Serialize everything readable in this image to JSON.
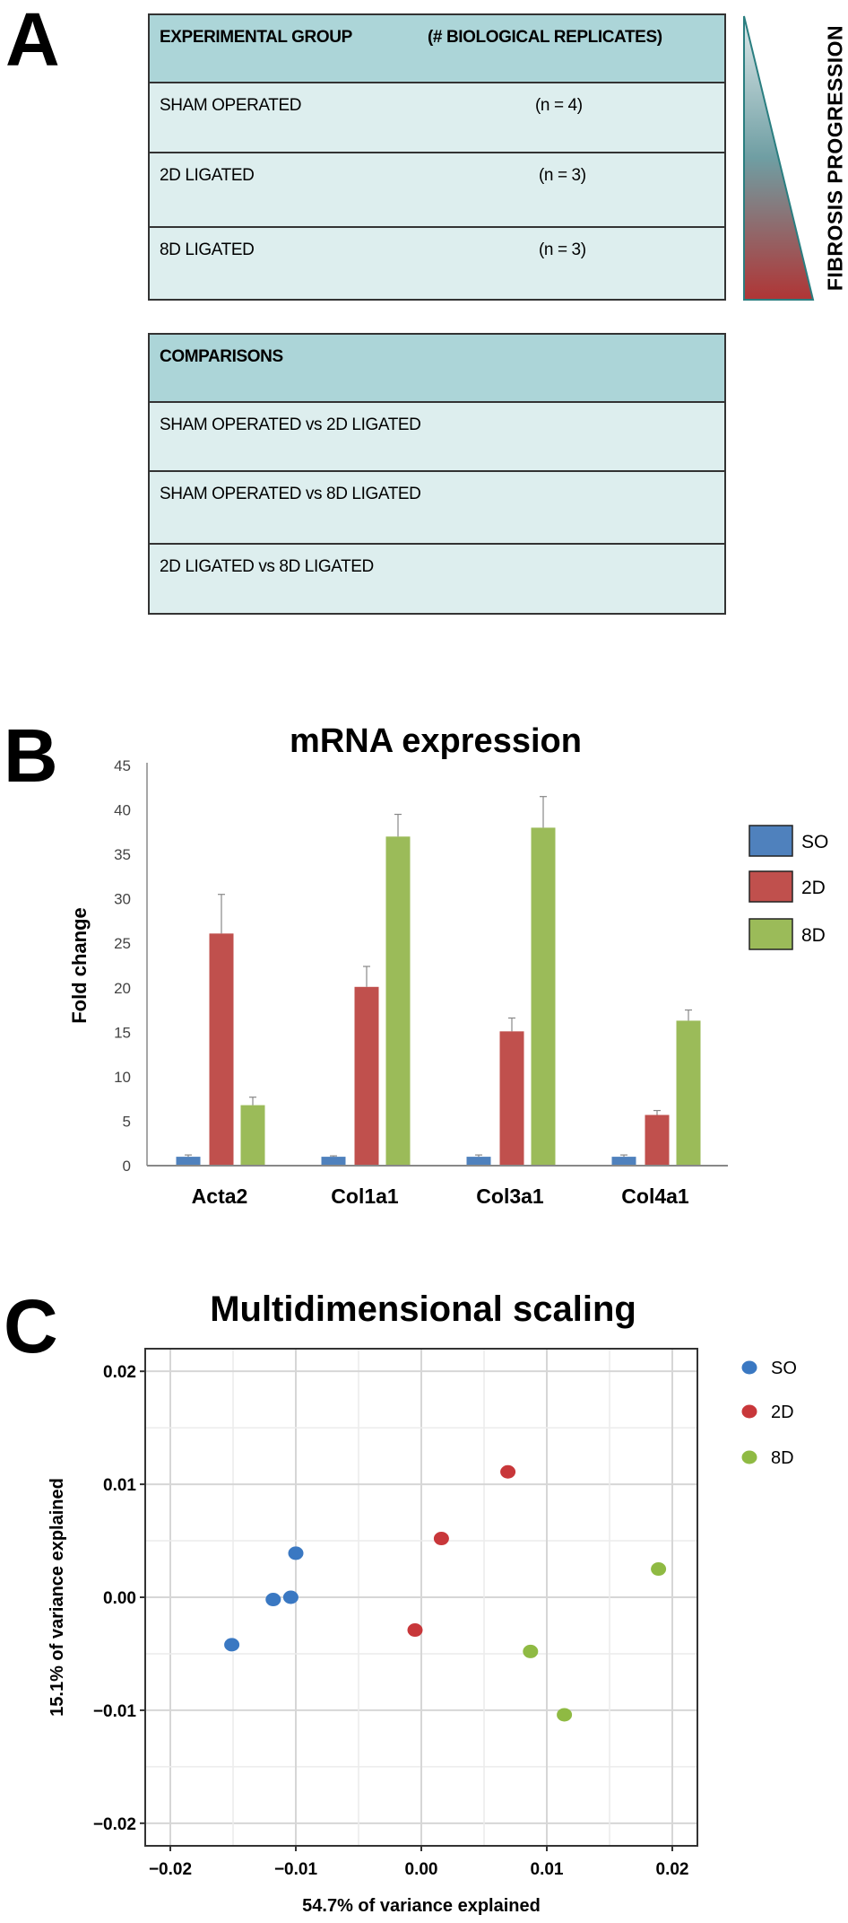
{
  "panels": {
    "a": "A",
    "b": "B",
    "c": "C"
  },
  "groups_table": {
    "header": [
      "EXPERIMENTAL GROUP",
      "(# BIOLOGICAL REPLICATES)"
    ],
    "rows": [
      [
        "SHAM OPERATED",
        "(n = 4)"
      ],
      [
        "2D LIGATED",
        "(n = 3)"
      ],
      [
        "8D LIGATED",
        "(n = 3)"
      ]
    ]
  },
  "comparisons_table": {
    "header": "COMPARISONS",
    "rows": [
      "SHAM OPERATED vs 2D LIGATED",
      "SHAM OPERATED vs 8D LIGATED",
      "2D LIGATED vs 8D LIGATED"
    ]
  },
  "fibrosis_indicator": {
    "label": "FIBROSIS PROGRESSION",
    "colors": [
      "#dde9ea",
      "#6f9ea3",
      "#b03535"
    ],
    "stroke": "#2a7e80"
  },
  "colors": {
    "table_header": "#acd5d8",
    "table_row": "#ddeeee"
  },
  "chart_data": [
    {
      "type": "bar",
      "title": "mRNA expression",
      "xlabel": "",
      "ylabel": "Fold change",
      "ylim": [
        0,
        45
      ],
      "yticks": [
        0,
        5,
        10,
        15,
        20,
        25,
        30,
        35,
        40,
        45
      ],
      "categories": [
        "Acta2",
        "Col1a1",
        "Col3a1",
        "Col4a1"
      ],
      "series": [
        {
          "name": "SO",
          "color": "#4f81bd",
          "values": [
            1.0,
            1.0,
            1.0,
            1.0
          ],
          "errors": [
            0.2,
            0.1,
            0.2,
            0.2
          ]
        },
        {
          "name": "2D",
          "color": "#c0504d",
          "values": [
            26.1,
            20.1,
            15.1,
            5.7
          ],
          "errors": [
            4.4,
            2.3,
            1.5,
            0.5
          ]
        },
        {
          "name": "8D",
          "color": "#9bbb59",
          "values": [
            6.8,
            37.0,
            38.0,
            16.3
          ],
          "errors": [
            0.9,
            2.5,
            3.5,
            1.2
          ]
        }
      ],
      "legend": "right",
      "grid": false
    },
    {
      "type": "scatter",
      "title": "Multidimensional scaling",
      "xlabel": "54.7% of variance explained",
      "ylabel": "15.1% of variance explained",
      "xlim": [
        -0.022,
        0.022
      ],
      "ylim": [
        -0.022,
        0.022
      ],
      "xticks": [
        "-0.02",
        "-0.01",
        "0.00",
        "0.01",
        "0.02"
      ],
      "yticks": [
        "-0.02",
        "-0.01",
        "0.00",
        "0.01",
        "0.02"
      ],
      "grid": true,
      "legend": "top-right",
      "series": [
        {
          "name": "SO",
          "color": "#3a78c2",
          "points": [
            [
              -0.0151,
              -0.0042
            ],
            [
              -0.0118,
              -0.0002
            ],
            [
              -0.0104,
              0.0
            ],
            [
              -0.01,
              0.0039
            ]
          ]
        },
        {
          "name": "2D",
          "color": "#c8373a",
          "points": [
            [
              -0.0005,
              -0.0029
            ],
            [
              0.0016,
              0.0052
            ],
            [
              0.0069,
              0.0111
            ]
          ]
        },
        {
          "name": "8D",
          "color": "#8fba43",
          "points": [
            [
              0.0087,
              -0.0048
            ],
            [
              0.0114,
              -0.0104
            ],
            [
              0.0189,
              0.0025
            ]
          ]
        }
      ]
    }
  ]
}
